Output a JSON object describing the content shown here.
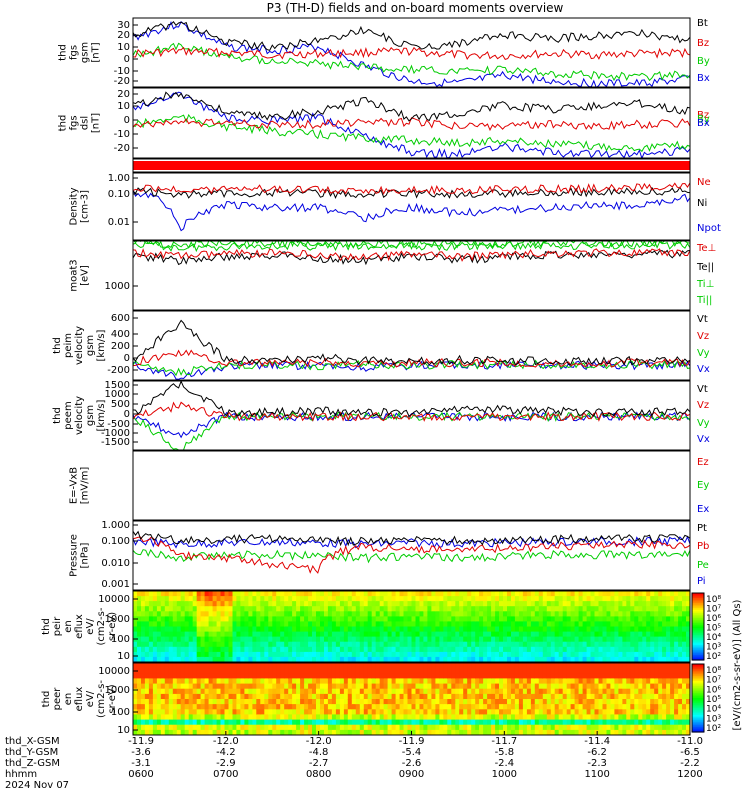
{
  "title": "P3 (TH-D) fields and on-board moments overview",
  "colors": {
    "black": "#000000",
    "red": "#e00000",
    "green": "#00cc00",
    "blue": "#0000e0"
  },
  "panels": [
    {
      "ylabel": [
        "thd",
        "fgs",
        "gsm",
        "[nT]"
      ],
      "ticks": [
        "30",
        "20",
        "10",
        "0",
        "-10",
        "-20"
      ],
      "legend": [
        {
          "text": "Bt",
          "color": "#000000"
        },
        {
          "text": "Bz",
          "color": "#e00000"
        },
        {
          "text": "By",
          "color": "#00cc00"
        },
        {
          "text": "Bx",
          "color": "#0000e0"
        }
      ]
    },
    {
      "ylabel": [
        "thd",
        "fgs",
        "dsl",
        "[nT]"
      ],
      "ticks": [
        "20",
        "10",
        "0",
        "-10",
        "-20"
      ],
      "legend": [
        {
          "text": "Bz",
          "color": "#e00000"
        },
        {
          "text": "By",
          "color": "#00cc00"
        },
        {
          "text": "Bx",
          "color": "#0000e0"
        }
      ]
    },
    {
      "ylabel": [],
      "ticks": [],
      "legend": []
    },
    {
      "ylabel": [
        "Density",
        "[cm-3]"
      ],
      "ticks": [
        "1.00",
        "0.10",
        "0.01"
      ],
      "legend": [
        {
          "text": "Ne",
          "color": "#e00000"
        },
        {
          "text": "Ni",
          "color": "#000000"
        },
        {
          "text": "Npot",
          "color": "#0000e0"
        }
      ]
    },
    {
      "ylabel": [
        "moat3",
        "[eV]"
      ],
      "ticks": [
        "1000"
      ],
      "legend": [
        {
          "text": "Te⊥",
          "color": "#e00000"
        },
        {
          "text": "Te||",
          "color": "#000000"
        },
        {
          "text": "Ti⊥",
          "color": "#00cc00"
        },
        {
          "text": "Ti||",
          "color": "#00cc00"
        }
      ]
    },
    {
      "ylabel": [
        "thd",
        "peim",
        "velocity",
        "gsm",
        "[km/s]"
      ],
      "ticks": [
        "600",
        "400",
        "200",
        "0",
        "-200"
      ],
      "legend": [
        {
          "text": "Vt",
          "color": "#000000"
        },
        {
          "text": "Vz",
          "color": "#e00000"
        },
        {
          "text": "Vy",
          "color": "#00cc00"
        },
        {
          "text": "Vx",
          "color": "#0000e0"
        }
      ]
    },
    {
      "ylabel": [
        "thd",
        "peem",
        "velocity",
        "gsm",
        "[km/s]"
      ],
      "ticks": [
        "1500",
        "1000",
        "500",
        "0",
        "-500",
        "-1000",
        "-1500"
      ],
      "legend": [
        {
          "text": "Vt",
          "color": "#000000"
        },
        {
          "text": "Vz",
          "color": "#e00000"
        },
        {
          "text": "Vy",
          "color": "#00cc00"
        },
        {
          "text": "Vx",
          "color": "#0000e0"
        }
      ]
    },
    {
      "ylabel": [
        "E=-VxB",
        "[mV/m]"
      ],
      "ticks": [],
      "legend": [
        {
          "text": "Ez",
          "color": "#e00000"
        },
        {
          "text": "Ey",
          "color": "#00cc00"
        },
        {
          "text": "Ex",
          "color": "#0000e0"
        }
      ]
    },
    {
      "ylabel": [
        "Pressure",
        "[nPa]"
      ],
      "ticks": [
        "1.000",
        "0.100",
        "0.010",
        "0.001"
      ],
      "legend": [
        {
          "text": "Pt",
          "color": "#000000"
        },
        {
          "text": "Pb",
          "color": "#e00000"
        },
        {
          "text": "Pe",
          "color": "#00cc00"
        },
        {
          "text": "Pi",
          "color": "#0000e0"
        }
      ]
    },
    {
      "ylabel": [
        "thd",
        "peir",
        "en",
        "eflux",
        "eV/",
        "(cm2-s-",
        "sr-eV)"
      ],
      "ticks": [
        "10000",
        "1000",
        "100",
        "10"
      ],
      "legend": []
    },
    {
      "ylabel": [
        "thd",
        "peer",
        "en",
        "eflux",
        "eV/",
        "(cm2-s-",
        "sr-eV)"
      ],
      "ticks": [
        "10000",
        "1000",
        "100",
        "10"
      ],
      "legend": []
    }
  ],
  "colorbar": {
    "ticks": [
      "10⁸",
      "10⁷",
      "10⁶",
      "10⁵",
      "10⁴",
      "10³",
      "10²"
    ],
    "label": "[eV/(cm2-s-sr-eV)] (All Qs)"
  },
  "xaxis": {
    "rows": [
      {
        "label": "thd_X-GSM",
        "values": [
          "-11.9",
          "-12.0",
          "-12.0",
          "-11.9",
          "-11.7",
          "-11.4",
          "-11.0"
        ]
      },
      {
        "label": "thd_Y-GSM",
        "values": [
          "-3.6",
          "-4.2",
          "-4.8",
          "-5.4",
          "-5.8",
          "-6.2",
          "-6.5"
        ]
      },
      {
        "label": "thd_Z-GSM",
        "values": [
          "-3.1",
          "-2.9",
          "-2.7",
          "-2.6",
          "-2.4",
          "-2.3",
          "-2.2"
        ]
      },
      {
        "label": "hhmm",
        "values": [
          "0600",
          "0700",
          "0800",
          "0900",
          "1000",
          "1100",
          "1200"
        ]
      }
    ],
    "date": "2024 Nov 07"
  },
  "chart_data": {
    "type": "line",
    "title": "P3 (TH-D) fields and on-board moments overview",
    "x_labels": [
      "0600",
      "0700",
      "0800",
      "0900",
      "1000",
      "1100",
      "1200"
    ],
    "date": "2024 Nov 07",
    "panels": [
      {
        "ylabel": "thd fgs gsm [nT]",
        "ylim": [
          -25,
          35
        ],
        "series": [
          {
            "name": "Bt",
            "values": [
              20,
              31,
              14,
              10,
              15,
              25,
              9,
              13,
              20,
              17,
              20,
              22,
              15
            ]
          },
          {
            "name": "Bz",
            "values": [
              4,
              6,
              5,
              3,
              4,
              5,
              6,
              3,
              2,
              4,
              3,
              4,
              5
            ]
          },
          {
            "name": "By",
            "values": [
              3,
              10,
              2,
              -2,
              -5,
              -8,
              -10,
              -12,
              -10,
              -13,
              -15,
              -16,
              -14
            ]
          },
          {
            "name": "Bx",
            "values": [
              18,
              30,
              10,
              7,
              10,
              -7,
              -20,
              -22,
              -15,
              -20,
              -22,
              -22,
              -18
            ]
          }
        ]
      },
      {
        "ylabel": "thd fgs dsl [nT]",
        "ylim": [
          -30,
          25
        ],
        "series": [
          {
            "name": "Bz",
            "values": [
              2,
              5,
              0,
              2,
              0,
              3,
              2,
              0,
              1,
              2,
              0,
              3,
              2
            ]
          },
          {
            "name": "By",
            "values": [
              -4,
              0,
              -2,
              -3,
              -5,
              -8,
              -20,
              -10,
              -5,
              -5,
              -10,
              -8,
              -6
            ]
          },
          {
            "name": "Bx",
            "values": [
              -5,
              3,
              -3,
              -4,
              -5,
              -10,
              -27,
              -12,
              -6,
              -6,
              -10,
              -8,
              -6
            ]
          }
        ]
      },
      {
        "ylabel": "Density [cm-3]",
        "scale": "log",
        "ylim": [
          0.003,
          1
        ],
        "series": [
          {
            "name": "Ne",
            "values": [
              0.28,
              0.22,
              0.25,
              0.26,
              0.24,
              0.22,
              0.25,
              0.23,
              0.24,
              0.25,
              0.26,
              0.28,
              0.3
            ]
          },
          {
            "name": "Ni",
            "values": [
              0.22,
              0.16,
              0.18,
              0.18,
              0.17,
              0.16,
              0.17,
              0.16,
              0.17,
              0.18,
              0.19,
              0.2,
              0.22
            ]
          },
          {
            "name": "Npot",
            "values": [
              0.2,
              0.005,
              0.06,
              0.05,
              0.05,
              0.02,
              0.05,
              0.03,
              0.04,
              0.05,
              0.06,
              0.06,
              0.12
            ]
          }
        ]
      },
      {
        "ylabel": "moat3 [eV]",
        "scale": "log",
        "series": [
          {
            "name": "Te⊥",
            "values": [
              2000,
              1500,
              1800,
              2000,
              1500,
              1000,
              1800,
              1200,
              1600,
              2000,
              2200,
              2000,
              2300
            ]
          },
          {
            "name": "Te||",
            "values": [
              1500,
              700,
              1300,
              1500,
              1000,
              700,
              1300,
              800,
              1100,
              1500,
              1600,
              1600,
              1800
            ]
          },
          {
            "name": "Ti⊥",
            "values": [
              7000,
              4000,
              5000,
              5500,
              5000,
              4500,
              5000,
              4800,
              5200,
              5500,
              5600,
              5700,
              6000
            ]
          },
          {
            "name": "Ti||",
            "values": [
              9000,
              5500,
              7500,
              8000,
              7500,
              7000,
              7500,
              7200,
              7600,
              8000,
              8200,
              8300,
              8500
            ]
          }
        ]
      },
      {
        "ylabel": "thd peim velocity gsm [km/s]",
        "ylim": [
          -200,
          650
        ],
        "series": [
          {
            "name": "Vt",
            "values": [
              30,
              500,
              60,
              40,
              80,
              40,
              30,
              50,
              40,
              40,
              30,
              40,
              30
            ]
          },
          {
            "name": "Vz",
            "values": [
              10,
              150,
              20,
              10,
              20,
              10,
              10,
              15,
              10,
              10,
              10,
              10,
              10
            ]
          },
          {
            "name": "Vy",
            "values": [
              -10,
              -100,
              -20,
              -10,
              -30,
              -10,
              -20,
              -10,
              -10,
              -10,
              -10,
              -10,
              -10
            ]
          },
          {
            "name": "Vx",
            "values": [
              -10,
              -150,
              -40,
              -20,
              -30,
              -50,
              -20,
              -20,
              -20,
              -20,
              -20,
              -20,
              -10
            ]
          }
        ]
      },
      {
        "ylabel": "thd peem velocity gsm [km/s]",
        "ylim": [
          -1500,
          1600
        ],
        "series": [
          {
            "name": "Vt",
            "values": [
              150,
              1500,
              200,
              200,
              250,
              200,
              200,
              400,
              300,
              250,
              200,
              200,
              200
            ]
          },
          {
            "name": "Vz",
            "values": [
              0,
              500,
              0,
              0,
              0,
              0,
              0,
              0,
              0,
              0,
              0,
              0,
              0
            ]
          },
          {
            "name": "Vy",
            "values": [
              0,
              -1500,
              0,
              0,
              0,
              0,
              0,
              0,
              0,
              0,
              0,
              0,
              0
            ]
          },
          {
            "name": "Vx",
            "values": [
              0,
              -800,
              0,
              0,
              0,
              0,
              0,
              0,
              0,
              0,
              0,
              0,
              0
            ]
          }
        ]
      },
      {
        "ylabel": "E=-VxB [mV/m]",
        "series": []
      },
      {
        "ylabel": "Pressure [nPa]",
        "scale": "log",
        "ylim": [
          0.0005,
          1.5
        ],
        "series": [
          {
            "name": "Pt",
            "values": [
              0.3,
              0.15,
              0.18,
              0.2,
              0.16,
              0.14,
              0.16,
              0.15,
              0.16,
              0.18,
              0.2,
              0.2,
              0.22
            ]
          },
          {
            "name": "Pb",
            "values": [
              0.25,
              0.03,
              0.02,
              0.01,
              0.005,
              0.08,
              0.05,
              0.06,
              0.06,
              0.08,
              0.09,
              0.1,
              0.08
            ]
          },
          {
            "name": "Pe",
            "values": [
              0.05,
              0.02,
              0.03,
              0.03,
              0.025,
              0.02,
              0.025,
              0.02,
              0.025,
              0.03,
              0.03,
              0.03,
              0.035
            ]
          },
          {
            "name": "Pi",
            "values": [
              0.15,
              0.1,
              0.12,
              0.13,
              0.12,
              0.1,
              0.12,
              0.11,
              0.12,
              0.13,
              0.14,
              0.14,
              0.15
            ]
          }
        ]
      },
      {
        "ylabel": "thd peir en eflux eV/(cm2-s-sr-eV)",
        "type": "heatmap",
        "ylim": [
          5,
          20000
        ]
      },
      {
        "ylabel": "thd peer en eflux eV/(cm2-s-sr-eV)",
        "type": "heatmap",
        "ylim": [
          5,
          20000
        ]
      }
    ]
  }
}
